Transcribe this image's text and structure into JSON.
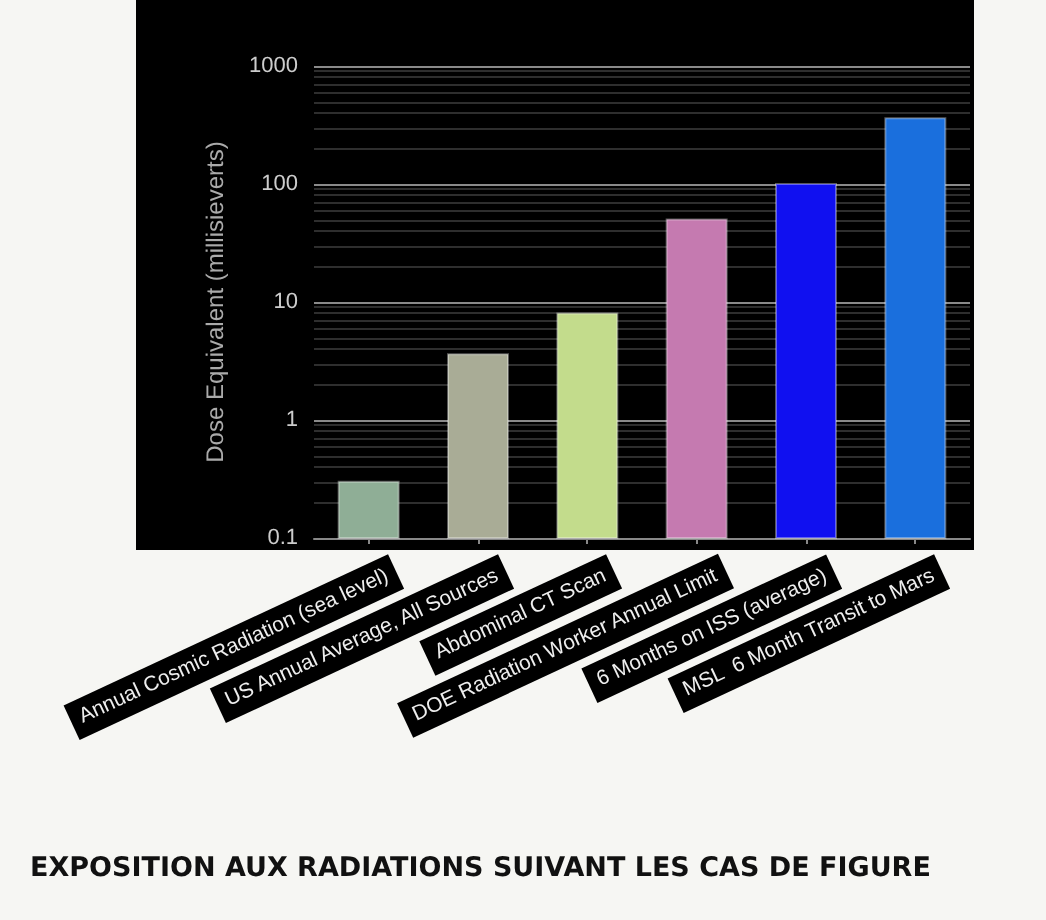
{
  "chart_data": {
    "type": "bar",
    "title": "EXPOSITION AUX RADIATIONS SUIVANT LES CAS DE FIGURE",
    "ylabel": "Dose Equivalent (millisieverts)",
    "categories": [
      "Annual Cosmic Radiation (sea level)",
      "US Annual Average, All Sources",
      "Abdominal CT Scan",
      "DOE Radiation Worker Annual Limit",
      "6 Months on ISS (average)",
      "MSL  6 Month Transit to Mars"
    ],
    "values": [
      0.3,
      3.6,
      8,
      50,
      100,
      360
    ],
    "colors": [
      "#8fae96",
      "#a9ac96",
      "#c3dc8c",
      "#c57ab0",
      "#1010f0",
      "#1a6fdd"
    ],
    "log": "y",
    "ylim": [
      0.1,
      1000
    ],
    "yticks": [
      0.1,
      1,
      10,
      100,
      1000
    ],
    "grid": "y"
  }
}
